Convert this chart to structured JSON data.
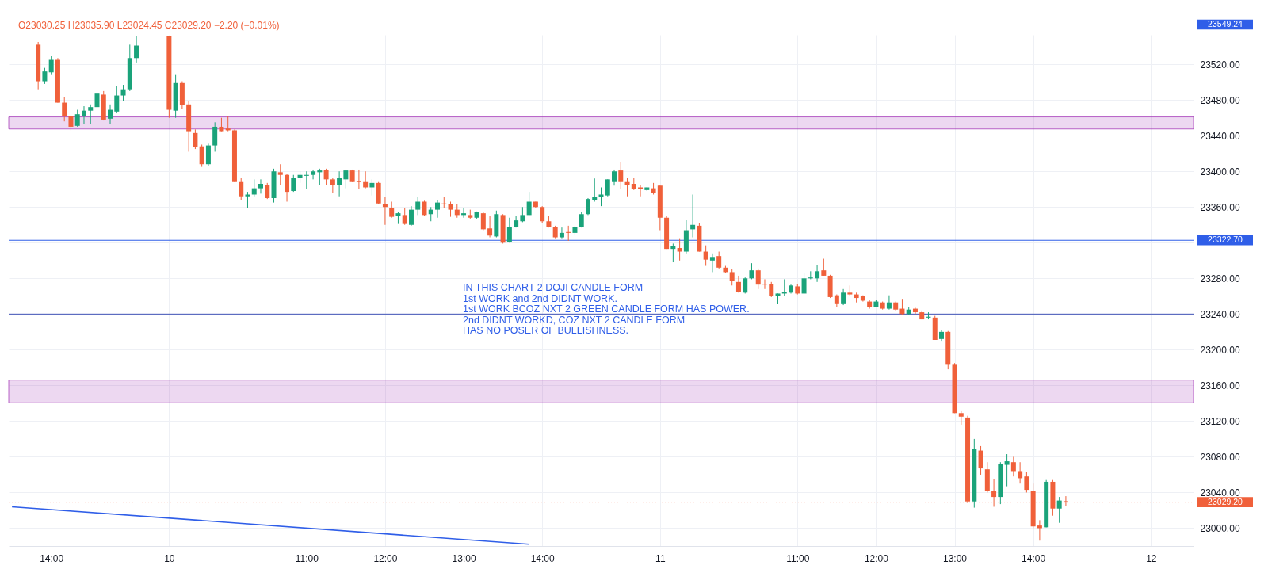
{
  "chart_data": {
    "type": "candlestick",
    "title": "O23030.25 H23035.90 L23024.45 C23029.20 −2.20 (−0.01%)",
    "categories": [
      null,
      null,
      null,
      null,
      null,
      null,
      "14:00",
      null,
      null,
      null,
      null,
      null,
      null,
      null,
      null,
      null,
      null,
      null,
      null,
      null,
      null,
      null,
      null,
      null,
      "10",
      null,
      null,
      null,
      null,
      null,
      null,
      null,
      null,
      null,
      null,
      null,
      null,
      null,
      null,
      null,
      null,
      null,
      null,
      null,
      null,
      "11:00",
      null,
      null,
      null,
      null,
      null,
      null,
      null,
      null,
      null,
      null,
      null,
      "12:00",
      null,
      null,
      null,
      null,
      null,
      null,
      null,
      null,
      null,
      null,
      null,
      "13:00",
      null,
      null,
      null,
      null,
      null,
      null,
      null,
      null,
      null,
      null,
      null,
      "14:00",
      null,
      null,
      null,
      null,
      null,
      null,
      null,
      null,
      null,
      null,
      null,
      null,
      null,
      null,
      null,
      null,
      null,
      "11",
      null,
      null,
      null,
      null,
      null,
      null,
      null,
      null,
      null,
      null,
      null,
      null,
      null,
      null,
      null,
      null,
      null,
      null,
      null,
      null,
      "11:00",
      null,
      null,
      null,
      null,
      null,
      null,
      null,
      null,
      null,
      null,
      null,
      "12:00",
      null,
      null,
      null,
      null,
      null,
      null,
      null,
      null,
      null,
      null,
      null,
      "13:00",
      null,
      null,
      null,
      null,
      null,
      null,
      null,
      null,
      null,
      null,
      null,
      "14:00",
      null,
      null,
      null,
      null,
      null,
      null,
      null,
      null,
      null,
      null,
      null,
      null,
      null,
      null,
      null,
      null,
      null,
      "12",
      null,
      null,
      null,
      null,
      null,
      null
    ],
    "ohlc": [
      null,
      null,
      null,
      null,
      [
        23542,
        23545,
        23492,
        23501
      ],
      [
        23501,
        23516,
        23498,
        23512
      ],
      [
        23511,
        23529,
        23508,
        23525
      ],
      [
        23525,
        23527,
        23477,
        23477
      ],
      [
        23477,
        23483,
        23456,
        23462
      ],
      [
        23462,
        23463,
        23446,
        23450
      ],
      [
        23451,
        23469,
        23450,
        23464
      ],
      [
        23462,
        23473,
        23453,
        23468
      ],
      [
        23468,
        23475,
        23453,
        23472
      ],
      [
        23472,
        23493,
        23469,
        23488
      ],
      [
        23486,
        23490,
        23457,
        23458
      ],
      [
        23459,
        23475,
        23453,
        23469
      ],
      [
        23467,
        23496,
        23465,
        23485
      ],
      [
        23485,
        23497,
        23479,
        23492
      ],
      [
        23492,
        23542,
        23490,
        23527
      ],
      [
        23527,
        23552,
        23522,
        23541
      ],
      null,
      null,
      null,
      null,
      [
        23552,
        23552,
        23460,
        23469
      ],
      [
        23468,
        23508,
        23460,
        23499
      ],
      [
        23499,
        23501,
        23470,
        23474
      ],
      [
        23475,
        23479,
        23422,
        23445
      ],
      [
        23443,
        23447,
        23425,
        23427
      ],
      [
        23428,
        23430,
        23405,
        23408
      ],
      [
        23408,
        23431,
        23406,
        23429
      ],
      [
        23429,
        23455,
        23422,
        23450
      ],
      [
        23450,
        23460,
        23445,
        23445
      ],
      [
        23448,
        23462,
        23445,
        23446
      ],
      [
        23446,
        23447,
        23388,
        23388
      ],
      [
        23388,
        23393,
        23368,
        23372
      ],
      [
        23372,
        23377,
        23359,
        23374
      ],
      [
        23374,
        23391,
        23372,
        23381
      ],
      [
        23381,
        23391,
        23375,
        23386
      ],
      [
        23385,
        23387,
        23369,
        23370
      ],
      [
        23370,
        23403,
        23365,
        23400
      ],
      [
        23399,
        23408,
        23385,
        23396
      ],
      [
        23396,
        23397,
        23366,
        23377
      ],
      [
        23378,
        23396,
        23377,
        23393
      ],
      [
        23393,
        23400,
        23387,
        23396
      ],
      [
        23395,
        23400,
        23380,
        23396
      ],
      [
        23396,
        23402,
        23391,
        23400
      ],
      [
        23399,
        23403,
        23385,
        23401
      ],
      [
        23402,
        23403,
        23385,
        23391
      ],
      [
        23391,
        23393,
        23376,
        23385
      ],
      [
        23385,
        23400,
        23372,
        23393
      ],
      [
        23391,
        23402,
        23381,
        23401
      ],
      [
        23401,
        23402,
        23388,
        23388
      ],
      [
        23389,
        23402,
        23380,
        23388
      ],
      [
        23388,
        23400,
        23381,
        23382
      ],
      [
        23382,
        23391,
        23373,
        23387
      ],
      [
        23387,
        23388,
        23363,
        23364
      ],
      [
        23363,
        23371,
        23340,
        23360
      ],
      [
        23359,
        23366,
        23348,
        23349
      ],
      [
        23350,
        23354,
        23341,
        23353
      ],
      [
        23351,
        23359,
        23340,
        23341
      ],
      [
        23340,
        23361,
        23339,
        23357
      ],
      [
        23357,
        23371,
        23351,
        23366
      ],
      [
        23366,
        23367,
        23350,
        23351
      ],
      [
        23352,
        23360,
        23344,
        23357
      ],
      [
        23357,
        23368,
        23348,
        23365
      ],
      [
        23364,
        23371,
        23359,
        23363
      ],
      [
        23363,
        23366,
        23349,
        23357
      ],
      [
        23357,
        23363,
        23348,
        23351
      ],
      [
        23351,
        23359,
        23348,
        23353
      ],
      [
        23351,
        23357,
        23347,
        23348
      ],
      [
        23348,
        23355,
        23347,
        23354
      ],
      [
        23353,
        23354,
        23334,
        23335
      ],
      [
        23336,
        23350,
        23326,
        23328
      ],
      [
        23327,
        23356,
        23326,
        23352
      ],
      [
        23351,
        23352,
        23319,
        23320
      ],
      [
        23321,
        23348,
        23320,
        23338
      ],
      [
        23338,
        23350,
        23337,
        23345
      ],
      [
        23344,
        23360,
        23343,
        23351
      ],
      [
        23351,
        23377,
        23351,
        23366
      ],
      [
        23366,
        23366,
        23359,
        23360
      ],
      [
        23360,
        23361,
        23342,
        23344
      ],
      [
        23344,
        23350,
        23337,
        23338
      ],
      [
        23338,
        23339,
        23325,
        23326
      ],
      [
        23326,
        23337,
        23325,
        23331
      ],
      [
        23332,
        23339,
        23322,
        23331
      ],
      [
        23331,
        23339,
        23328,
        23338
      ],
      [
        23338,
        23354,
        23337,
        23352
      ],
      [
        23352,
        23370,
        23351,
        23369
      ],
      [
        23368,
        23392,
        23366,
        23371
      ],
      [
        23371,
        23382,
        23361,
        23374
      ],
      [
        23373,
        23391,
        23372,
        23391
      ],
      [
        23388,
        23402,
        23384,
        23400
      ],
      [
        23401,
        23410,
        23380,
        23388
      ],
      [
        23388,
        23393,
        23372,
        23385
      ],
      [
        23386,
        23393,
        23379,
        23380
      ],
      [
        23382,
        23385,
        23372,
        23380
      ],
      [
        23379,
        23382,
        23378,
        23382
      ],
      [
        23381,
        23387,
        23374,
        23376
      ],
      [
        23384,
        23384,
        23334,
        23348
      ],
      [
        23348,
        23350,
        23313,
        23313
      ],
      [
        23313,
        23319,
        23298,
        23316
      ],
      [
        23314,
        23325,
        23300,
        23310
      ],
      [
        23310,
        23346,
        23308,
        23334
      ],
      [
        23335,
        23374,
        23326,
        23340
      ],
      [
        23339,
        23342,
        23310,
        23310
      ],
      [
        23310,
        23317,
        23294,
        23301
      ],
      [
        23300,
        23308,
        23287,
        23304
      ],
      [
        23305,
        23310,
        23291,
        23292
      ],
      [
        23292,
        23294,
        23286,
        23287
      ],
      [
        23287,
        23290,
        23272,
        23277
      ],
      [
        23276,
        23283,
        23264,
        23265
      ],
      [
        23264,
        23281,
        23263,
        23280
      ],
      [
        23280,
        23297,
        23279,
        23289
      ],
      [
        23289,
        23291,
        23268,
        23273
      ],
      [
        23274,
        23279,
        23268,
        23273
      ],
      [
        23274,
        23276,
        23259,
        23260
      ],
      [
        23260,
        23263,
        23251,
        23263
      ],
      [
        23263,
        23279,
        23260,
        23265
      ],
      [
        23264,
        23273,
        23263,
        23272
      ],
      [
        23271,
        23274,
        23262,
        23263
      ],
      [
        23263,
        23286,
        23263,
        23280
      ],
      [
        23280,
        23288,
        23279,
        23281
      ],
      [
        23280,
        23295,
        23276,
        23288
      ],
      [
        23289,
        23302,
        23283,
        23283
      ],
      [
        23283,
        23284,
        23258,
        23259
      ],
      [
        23261,
        23262,
        23248,
        23252
      ],
      [
        23252,
        23268,
        23250,
        23264
      ],
      [
        23264,
        23272,
        23260,
        23262
      ],
      [
        23262,
        23264,
        23253,
        23258
      ],
      [
        23260,
        23261,
        23254,
        23255
      ],
      [
        23254,
        23256,
        23246,
        23248
      ],
      [
        23248,
        23256,
        23248,
        23254
      ],
      [
        23253,
        23254,
        23245,
        23246
      ],
      [
        23246,
        23261,
        23245,
        23253
      ],
      [
        23253,
        23254,
        23244,
        23245
      ],
      [
        23246,
        23257,
        23239,
        23240
      ],
      [
        23240,
        23248,
        23239,
        23245
      ],
      [
        23246,
        23247,
        23240,
        23242
      ],
      [
        23242,
        23244,
        23234,
        23234
      ],
      [
        23236,
        23242,
        23234,
        23237
      ],
      [
        23236,
        23238,
        23211,
        23211
      ],
      [
        23212,
        23222,
        23210,
        23220
      ],
      [
        23220,
        23221,
        23178,
        23184
      ],
      [
        23184,
        23185,
        23129,
        23129
      ],
      [
        23129,
        23132,
        23116,
        23125
      ],
      [
        23124,
        23126,
        23028,
        23030
      ],
      [
        23030,
        23100,
        23023,
        23089
      ],
      [
        23087,
        23092,
        23060,
        23067
      ],
      [
        23066,
        23074,
        23040,
        23042
      ],
      [
        23042,
        23055,
        23024,
        23035
      ],
      [
        23035,
        23074,
        23027,
        23072
      ],
      [
        23071,
        23083,
        23047,
        23075
      ],
      [
        23074,
        23080,
        23058,
        23064
      ],
      [
        23064,
        23074,
        23050,
        23056
      ],
      [
        23058,
        23063,
        23040,
        23043
      ],
      [
        23042,
        23050,
        22999,
        23002
      ],
      [
        23003,
        23009,
        22986,
        23000
      ],
      [
        23001,
        23054,
        23001,
        23052
      ],
      [
        23052,
        23054,
        23014,
        23022
      ],
      [
        23022,
        23035,
        23006,
        23031
      ],
      [
        23030.25,
        23035.9,
        23024.45,
        23029.2
      ],
      null,
      null,
      null,
      null,
      null,
      null,
      null,
      null,
      null,
      null,
      null,
      null,
      null,
      null,
      null,
      null,
      null,
      null,
      null
    ],
    "colors": [
      null,
      null,
      null,
      null,
      "#f0603a",
      "#1aa37a",
      "#1aa37a",
      "#f0603a",
      "#f0603a",
      "#f0603a",
      "#1aa37a",
      "#1aa37a",
      "#1aa37a",
      "#1aa37a",
      "#f0603a",
      "#1aa37a",
      "#1aa37a",
      "#1aa37a",
      "#1aa37a",
      "#1aa37a",
      null,
      null,
      null,
      null,
      "#f0603a",
      "#1aa37a",
      "#f0603a",
      "#f0603a",
      "#f0603a",
      "#f0603a",
      "#1aa37a",
      "#1aa37a",
      "#f0603a",
      "#f0603a",
      "#f0603a",
      "#f0603a",
      "#1aa37a",
      "#1aa37a",
      "#1aa37a",
      "#f0603a",
      "#1aa37a",
      "#f0603a",
      "#f0603a",
      "#1aa37a",
      "#1aa37a",
      "#1aa37a",
      "#1aa37a",
      "#1aa37a",
      "#f0603a",
      "#f0603a",
      "#1aa37a",
      "#1aa37a",
      "#f0603a",
      "#f0603a",
      "#f0603a",
      "#1aa37a",
      "#f0603a",
      "#f0603a",
      "#f0603a",
      "#1aa37a",
      "#f0603a",
      "#1aa37a",
      "#1aa37a",
      "#f0603a",
      "#1aa37a",
      "#1aa37a",
      "#f0603a",
      "#f0603a",
      "#f0603a",
      "#1aa37a",
      "#f0603a",
      "#1aa37a",
      "#f0603a",
      "#f0603a",
      "#1aa37a",
      "#f0603a",
      "#1aa37a",
      "#1aa37a",
      "#1aa37a",
      "#1aa37a",
      "#f0603a",
      "#f0603a",
      "#f0603a",
      "#f0603a",
      "#1aa37a",
      "#f0603a",
      "#1aa37a",
      "#1aa37a",
      "#1aa37a",
      "#1aa37a",
      "#1aa37a",
      "#1aa37a",
      "#1aa37a",
      "#f0603a",
      "#f0603a",
      "#f0603a",
      "#f0603a",
      "#1aa37a",
      "#f0603a",
      "#f0603a",
      "#f0603a",
      "#1aa37a",
      "#f0603a",
      "#1aa37a",
      "#1aa37a",
      "#f0603a",
      "#f0603a",
      "#1aa37a",
      "#f0603a",
      "#f0603a",
      "#f0603a",
      "#f0603a",
      "#1aa37a",
      "#1aa37a",
      "#f0603a",
      "#f0603a",
      "#f0603a",
      "#1aa37a",
      "#1aa37a",
      "#1aa37a",
      "#f0603a",
      "#1aa37a",
      "#1aa37a",
      "#1aa37a",
      "#f0603a",
      "#f0603a",
      "#f0603a",
      "#1aa37a",
      "#f0603a",
      "#f0603a",
      "#f0603a",
      "#f0603a",
      "#1aa37a",
      "#f0603a",
      "#1aa37a",
      "#f0603a",
      "#f0603a",
      "#1aa37a",
      "#f0603a",
      "#f0603a",
      "#1aa37a",
      "#f0603a",
      "#1aa37a",
      "#f0603a",
      "#f0603a",
      "#f0603a",
      "#f0603a",
      "#1aa37a",
      "#f0603a",
      "#f0603a",
      "#f0603a",
      "#1aa37a",
      "#1aa37a",
      "#f0603a",
      "#f0603a",
      "#f0603a",
      "#f0603a",
      "#f0603a",
      "#1aa37a",
      "#f0603a",
      "#1aa37a",
      "#f0603a",
      null,
      null,
      null,
      null,
      null,
      null,
      null,
      null,
      null,
      null,
      null,
      null,
      null,
      null,
      null,
      null,
      null,
      null,
      null
    ],
    "series": [
      {
        "type": "line",
        "color": "#2f5ee8",
        "values": [
          23024,
          null,
          null,
          null,
          null,
          null,
          null,
          null,
          null,
          null,
          null,
          null,
          null,
          null,
          null,
          null,
          null,
          null,
          null,
          null,
          null,
          null,
          null,
          null,
          null,
          null,
          null,
          null,
          null,
          null,
          null,
          null,
          null,
          null,
          null,
          null,
          null,
          null,
          null,
          null,
          null,
          null,
          null,
          null,
          null,
          null,
          null,
          null,
          null,
          null,
          null,
          null,
          null,
          null,
          null,
          null,
          null,
          null,
          null,
          null,
          null,
          null,
          null,
          null,
          null,
          null,
          null,
          null,
          null,
          null,
          null,
          null,
          null,
          null,
          null,
          null,
          null,
          null,
          null,
          22982,
          null,
          null,
          null,
          null,
          null,
          null,
          null,
          null,
          null,
          null,
          null,
          null,
          null,
          null,
          null,
          null,
          null,
          null,
          null,
          null,
          null,
          null,
          null,
          null,
          null,
          null,
          null,
          null,
          null,
          null,
          null,
          null,
          null,
          null,
          null,
          null,
          null,
          null,
          null,
          null,
          null,
          null,
          null,
          null,
          null,
          null,
          null,
          null,
          null,
          null,
          null,
          null,
          null,
          null,
          null,
          null,
          null,
          null,
          null,
          null,
          null,
          null,
          null,
          null,
          null,
          null,
          null,
          null,
          null,
          null,
          null,
          null,
          null,
          null,
          null,
          null,
          null,
          null,
          null,
          null,
          null,
          null,
          null,
          null,
          null,
          null,
          null,
          null,
          null,
          null,
          null,
          null,
          null,
          null,
          null,
          null,
          null,
          null,
          null,
          null,
          null
        ]
      }
    ],
    "ylim": [
      22980,
      23553
    ],
    "yticks": [
      {
        "value": 23000,
        "label": "23000.00"
      },
      {
        "value": 23040,
        "label": "23040.00"
      },
      {
        "value": 23080,
        "label": "23080.00"
      },
      {
        "value": 23120,
        "label": "23120.00"
      },
      {
        "value": 23160,
        "label": "23160.00"
      },
      {
        "value": 23200,
        "label": "23200.00"
      },
      {
        "value": 23240,
        "label": "23240.00"
      },
      {
        "value": 23280,
        "label": "23280.00"
      },
      {
        "value": 23320,
        "label": null
      },
      {
        "value": 23360,
        "label": "23360.00"
      },
      {
        "value": 23400,
        "label": "23400.00"
      },
      {
        "value": 23440,
        "label": "23440.00"
      },
      {
        "value": 23480,
        "label": "23480.00"
      },
      {
        "value": 23520,
        "label": "23520.00"
      }
    ],
    "grid": true,
    "ref_lines": [
      {
        "axis": "y",
        "value": 23322.7,
        "label": "23322.70",
        "color": "#2f5ee8",
        "line_style": "solid"
      },
      {
        "axis": "y",
        "value": 23240,
        "color": "#3f51b5",
        "line_style": "solid"
      },
      {
        "axis": "y",
        "value": 23029.2,
        "label": "23029.20",
        "color": "#f0603a",
        "line_style": "dotted"
      }
    ],
    "bands": [
      {
        "axis": "y",
        "from": 23447.5,
        "to": 23461,
        "color": "#9c27b0"
      },
      {
        "axis": "y",
        "from": 23140.5,
        "to": 23166,
        "color": "#9c27b0"
      }
    ],
    "annotations": [
      "23549.24",
      "IN THIS CHART 2 DOJI CANDLE FORM\n1st WORK and 2nd DIDNT WORK.\n1st WORK BCOZ NXT 2 GREEN CANDLE FORM HAS POWER.\n2nd DIDNT WORKD, COZ NXT 2 CANDLE FORM\nHAS NO POSER OF BULLISHNESS."
    ]
  }
}
